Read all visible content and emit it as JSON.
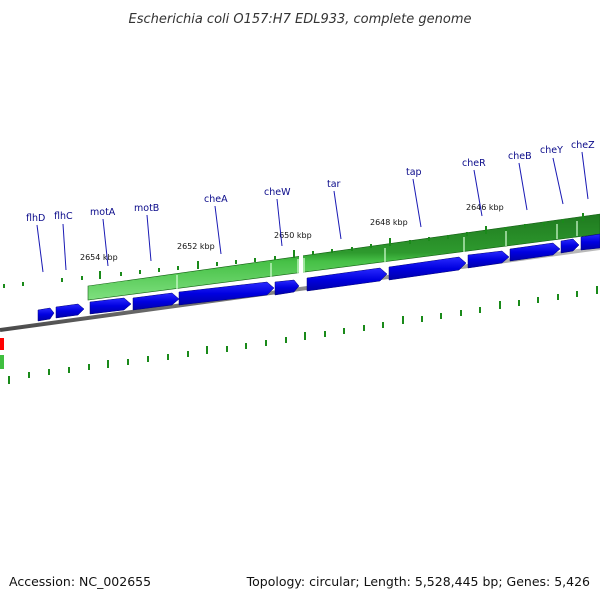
{
  "title": "Escherichia coli O157:H7 EDL933, complete genome",
  "footer": {
    "accession": "Accession: NC_002655",
    "summary": "Topology: circular; Length: 5,528,445 bp; Genes: 5,426"
  },
  "scale_labels": [
    "2654 kbp",
    "2652 kbp",
    "2650 kbp",
    "2648 kbp",
    "2646 kbp"
  ],
  "genes": [
    "flhD",
    "flhC",
    "motA",
    "motB",
    "cheA",
    "cheW",
    "tar",
    "tap",
    "cheR",
    "cheB",
    "cheY",
    "cheZ"
  ],
  "colors": {
    "cds_forward": "#0000e6",
    "gene_feature": "#1f8f1f",
    "gene_feature_light": "#4fd24f",
    "backbone": "#8a8a8a",
    "tick_green": "#1a8a1a",
    "label_blue": "#0a0a8a",
    "edge_red": "#ff0000"
  }
}
